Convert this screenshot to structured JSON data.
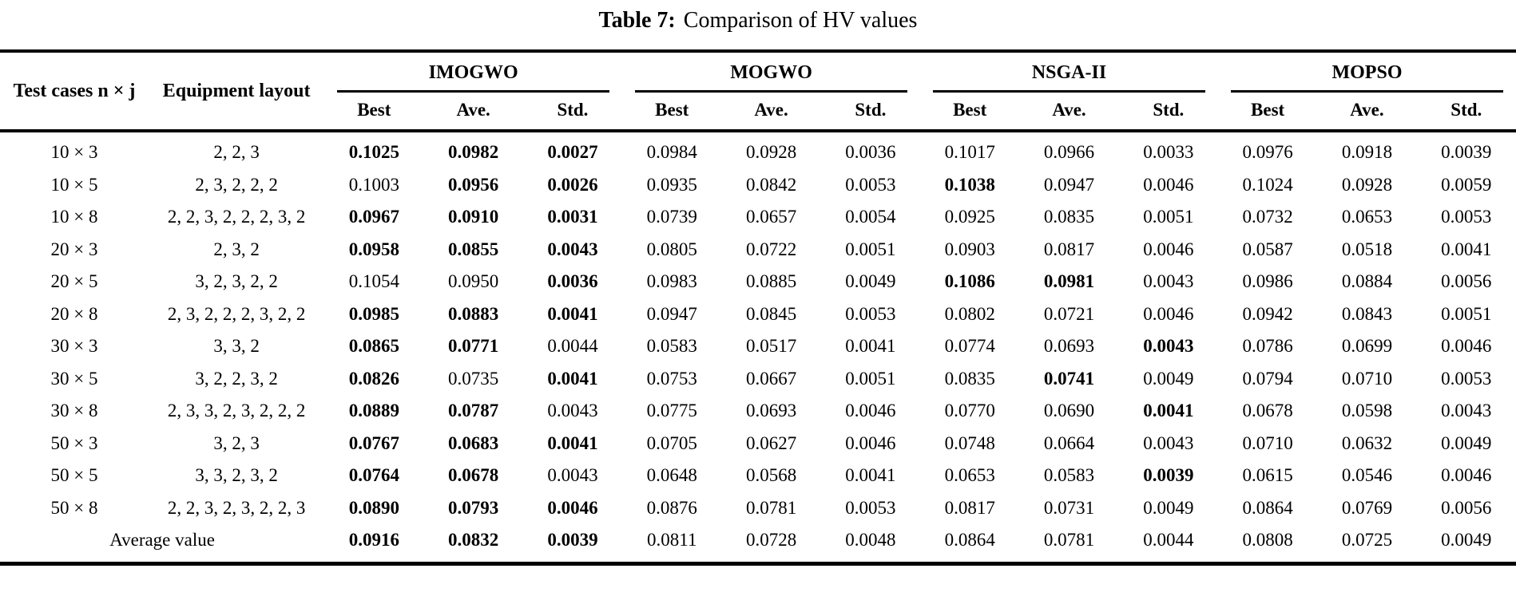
{
  "caption": {
    "label": "Table 7:",
    "text": "Comparison of HV values"
  },
  "table": {
    "col1_header": "Test cases n × j",
    "col2_header": "Equipment layout",
    "groups": [
      "IMOGWO",
      "MOGWO",
      "NSGA-II",
      "MOPSO"
    ],
    "sub_headers": [
      "Best",
      "Ave.",
      "Std."
    ],
    "rows": [
      {
        "case": "10 × 3",
        "layout": "2, 2, 3",
        "values": [
          "0.1025",
          "0.0982",
          "0.0027",
          "0.0984",
          "0.0928",
          "0.0036",
          "0.1017",
          "0.0966",
          "0.0033",
          "0.0976",
          "0.0918",
          "0.0039"
        ],
        "bold": [
          true,
          true,
          true,
          false,
          false,
          false,
          false,
          false,
          false,
          false,
          false,
          false
        ]
      },
      {
        "case": "10 × 5",
        "layout": "2, 3, 2, 2, 2",
        "values": [
          "0.1003",
          "0.0956",
          "0.0026",
          "0.0935",
          "0.0842",
          "0.0053",
          "0.1038",
          "0.0947",
          "0.0046",
          "0.1024",
          "0.0928",
          "0.0059"
        ],
        "bold": [
          false,
          true,
          true,
          false,
          false,
          false,
          true,
          false,
          false,
          false,
          false,
          false
        ]
      },
      {
        "case": "10 × 8",
        "layout": "2, 2, 3, 2, 2, 2, 3, 2",
        "values": [
          "0.0967",
          "0.0910",
          "0.0031",
          "0.0739",
          "0.0657",
          "0.0054",
          "0.0925",
          "0.0835",
          "0.0051",
          "0.0732",
          "0.0653",
          "0.0053"
        ],
        "bold": [
          true,
          true,
          true,
          false,
          false,
          false,
          false,
          false,
          false,
          false,
          false,
          false
        ]
      },
      {
        "case": "20 × 3",
        "layout": "2, 3, 2",
        "values": [
          "0.0958",
          "0.0855",
          "0.0043",
          "0.0805",
          "0.0722",
          "0.0051",
          "0.0903",
          "0.0817",
          "0.0046",
          "0.0587",
          "0.0518",
          "0.0041"
        ],
        "bold": [
          true,
          true,
          true,
          false,
          false,
          false,
          false,
          false,
          false,
          false,
          false,
          false
        ]
      },
      {
        "case": "20 × 5",
        "layout": "3, 2, 3, 2, 2",
        "values": [
          "0.1054",
          "0.0950",
          "0.0036",
          "0.0983",
          "0.0885",
          "0.0049",
          "0.1086",
          "0.0981",
          "0.0043",
          "0.0986",
          "0.0884",
          "0.0056"
        ],
        "bold": [
          false,
          false,
          true,
          false,
          false,
          false,
          true,
          true,
          false,
          false,
          false,
          false
        ]
      },
      {
        "case": "20 × 8",
        "layout": "2, 3, 2, 2, 2, 3, 2, 2",
        "values": [
          "0.0985",
          "0.0883",
          "0.0041",
          "0.0947",
          "0.0845",
          "0.0053",
          "0.0802",
          "0.0721",
          "0.0046",
          "0.0942",
          "0.0843",
          "0.0051"
        ],
        "bold": [
          true,
          true,
          true,
          false,
          false,
          false,
          false,
          false,
          false,
          false,
          false,
          false
        ]
      },
      {
        "case": "30 × 3",
        "layout": "3, 3, 2",
        "values": [
          "0.0865",
          "0.0771",
          "0.0044",
          "0.0583",
          "0.0517",
          "0.0041",
          "0.0774",
          "0.0693",
          "0.0043",
          "0.0786",
          "0.0699",
          "0.0046"
        ],
        "bold": [
          true,
          true,
          false,
          false,
          false,
          false,
          false,
          false,
          true,
          false,
          false,
          false
        ]
      },
      {
        "case": "30 × 5",
        "layout": "3, 2, 2, 3, 2",
        "values": [
          "0.0826",
          "0.0735",
          "0.0041",
          "0.0753",
          "0.0667",
          "0.0051",
          "0.0835",
          "0.0741",
          "0.0049",
          "0.0794",
          "0.0710",
          "0.0053"
        ],
        "bold": [
          true,
          false,
          true,
          false,
          false,
          false,
          false,
          true,
          false,
          false,
          false,
          false
        ]
      },
      {
        "case": "30 × 8",
        "layout": "2, 3, 3, 2, 3, 2, 2, 2",
        "values": [
          "0.0889",
          "0.0787",
          "0.0043",
          "0.0775",
          "0.0693",
          "0.0046",
          "0.0770",
          "0.0690",
          "0.0041",
          "0.0678",
          "0.0598",
          "0.0043"
        ],
        "bold": [
          true,
          true,
          false,
          false,
          false,
          false,
          false,
          false,
          true,
          false,
          false,
          false
        ]
      },
      {
        "case": "50 × 3",
        "layout": "3, 2, 3",
        "values": [
          "0.0767",
          "0.0683",
          "0.0041",
          "0.0705",
          "0.0627",
          "0.0046",
          "0.0748",
          "0.0664",
          "0.0043",
          "0.0710",
          "0.0632",
          "0.0049"
        ],
        "bold": [
          true,
          true,
          true,
          false,
          false,
          false,
          false,
          false,
          false,
          false,
          false,
          false
        ]
      },
      {
        "case": "50 × 5",
        "layout": "3, 3, 2, 3, 2",
        "values": [
          "0.0764",
          "0.0678",
          "0.0043",
          "0.0648",
          "0.0568",
          "0.0041",
          "0.0653",
          "0.0583",
          "0.0039",
          "0.0615",
          "0.0546",
          "0.0046"
        ],
        "bold": [
          true,
          true,
          false,
          false,
          false,
          false,
          false,
          false,
          true,
          false,
          false,
          false
        ]
      },
      {
        "case": "50 × 8",
        "layout": "2, 2, 3, 2, 3, 2, 2, 3",
        "values": [
          "0.0890",
          "0.0793",
          "0.0046",
          "0.0876",
          "0.0781",
          "0.0053",
          "0.0817",
          "0.0731",
          "0.0049",
          "0.0864",
          "0.0769",
          "0.0056"
        ],
        "bold": [
          true,
          true,
          true,
          false,
          false,
          false,
          false,
          false,
          false,
          false,
          false,
          false
        ]
      }
    ],
    "average_row": {
      "label": "Average value",
      "values": [
        "0.0916",
        "0.0832",
        "0.0039",
        "0.0811",
        "0.0728",
        "0.0048",
        "0.0864",
        "0.0781",
        "0.0044",
        "0.0808",
        "0.0725",
        "0.0049"
      ],
      "bold": [
        true,
        true,
        true,
        false,
        false,
        false,
        false,
        false,
        false,
        false,
        false,
        false
      ]
    }
  }
}
